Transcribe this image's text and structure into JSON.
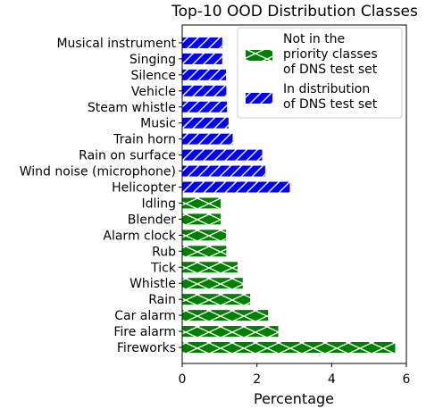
{
  "chart_data": {
    "type": "bar",
    "orientation": "horizontal",
    "title": "Top-10 OOD Distribution Classes",
    "xlabel": "Percentage",
    "ylabel": "",
    "xlim": [
      0,
      6
    ],
    "xticks": [
      "0",
      "2",
      "4",
      "6"
    ],
    "grid": false,
    "legend_position": "top-right",
    "colors": {
      "ood": "#008000",
      "in_dist": "#0000ff"
    },
    "series": [
      {
        "name": "Not in the priority classes of DNS test set",
        "legend_lines": [
          "Not in the",
          "priority classes",
          "of DNS test set"
        ],
        "color": "#008000",
        "hatch": "x",
        "categories": [
          "Fireworks",
          "Fire alarm",
          "Car alarm",
          "Rain",
          "Whistle",
          "Tick",
          "Rub",
          "Alarm clock",
          "Blender",
          "Idling"
        ],
        "values": [
          5.7,
          2.57,
          2.3,
          1.82,
          1.62,
          1.48,
          1.18,
          1.17,
          1.03,
          1.03
        ]
      },
      {
        "name": "In distribution of DNS test set",
        "legend_lines": [
          "In distribution",
          "of DNS test set"
        ],
        "color": "#0000ff",
        "hatch": "/",
        "categories": [
          "Helicopter",
          "Wind noise (microphone)",
          "Rain on surface",
          "Train horn",
          "Music",
          "Steam whistle",
          "Vehicle",
          "Silence",
          "Singing",
          "Musical instrument"
        ],
        "values": [
          2.88,
          2.22,
          2.14,
          1.35,
          1.24,
          1.2,
          1.18,
          1.17,
          1.07,
          1.07
        ]
      }
    ]
  }
}
